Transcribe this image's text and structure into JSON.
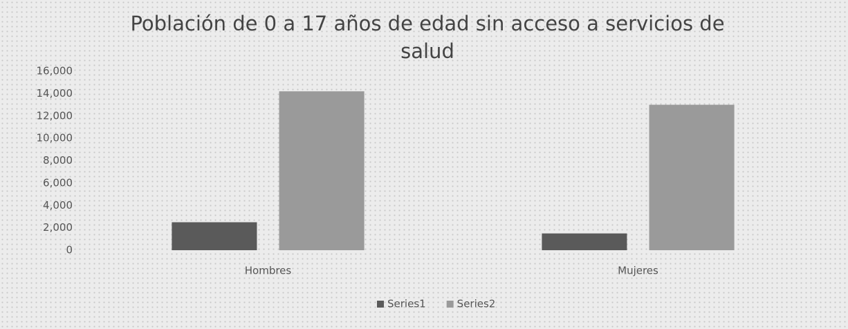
{
  "chart_data": {
    "type": "bar",
    "title": "Población de 0 a 17 años de edad sin acceso a servicios de salud",
    "categories": [
      "Hombres",
      "Mujeres"
    ],
    "series": [
      {
        "name": "Series1",
        "color": "#5a5a5a",
        "values": [
          2500,
          1500
        ]
      },
      {
        "name": "Series2",
        "color": "#9a9a9a",
        "values": [
          14200,
          13000
        ]
      }
    ],
    "ylim": [
      0,
      16000
    ],
    "yticks": [
      0,
      {
        "value": 2000,
        "label": "2,000"
      },
      {
        "value": 4000,
        "label": "4,000"
      },
      {
        "value": 6000,
        "label": "6,000"
      },
      {
        "value": 8000,
        "label": "8,000"
      },
      {
        "value": 10000,
        "label": "10,000"
      },
      {
        "value": 12000,
        "label": "12,000"
      },
      {
        "value": 14000,
        "label": "14,000"
      },
      {
        "value": 16000,
        "label": "16,000"
      }
    ],
    "grid": false,
    "legend": "bottom"
  }
}
